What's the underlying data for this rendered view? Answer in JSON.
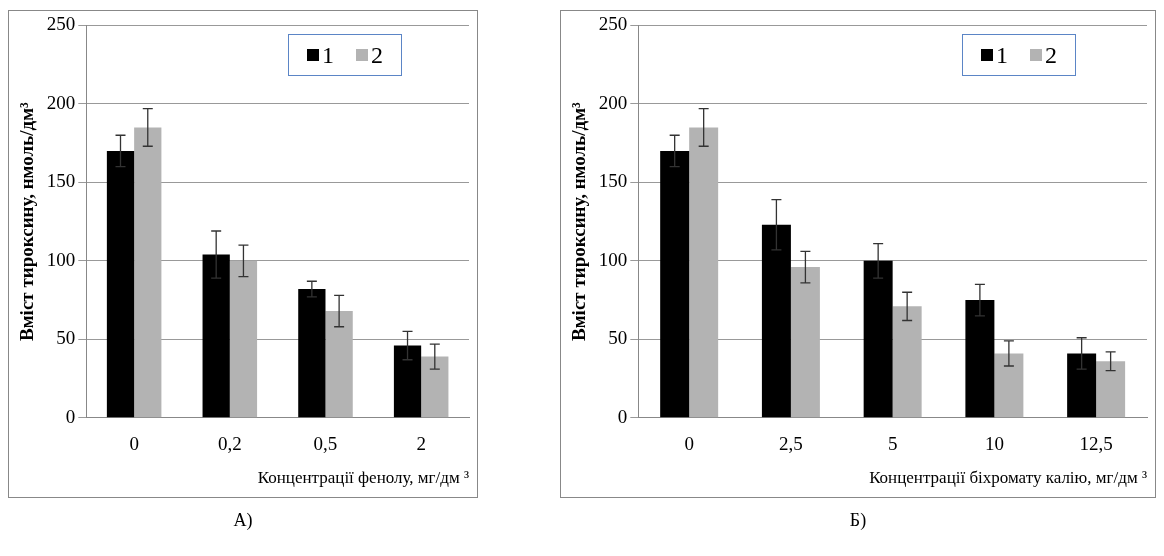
{
  "chart_data": [
    {
      "type": "bar",
      "ylabel": "Вміст тироксину, нмоль/дм³",
      "xlabel": "Концентрації фенолу, мг/дм ³",
      "categories": [
        "0",
        "0,2",
        "0,5",
        "2"
      ],
      "ylim": [
        0,
        250
      ],
      "yticks": [
        0,
        50,
        100,
        150,
        200,
        250
      ],
      "grid": "y",
      "legend": "top",
      "annotations": [
        "А)"
      ],
      "series": [
        {
          "name": "1",
          "color": "#000000",
          "values": [
            170,
            104,
            82,
            46
          ],
          "errors": [
            10,
            15,
            5,
            9
          ]
        },
        {
          "name": "2",
          "color": "#b3b3b3",
          "values": [
            185,
            100,
            68,
            39
          ],
          "errors": [
            12,
            10,
            10,
            8
          ]
        }
      ]
    },
    {
      "type": "bar",
      "ylabel": "Вміст тироксину, нмоль/дм³",
      "xlabel": "Концентрації біхромату калію, мг/дм ³",
      "categories": [
        "0",
        "2,5",
        "5",
        "10",
        "12,5"
      ],
      "ylim": [
        0,
        250
      ],
      "yticks": [
        0,
        50,
        100,
        150,
        200,
        250
      ],
      "grid": "y",
      "legend": "top right",
      "annotations": [
        "Б)"
      ],
      "series": [
        {
          "name": "1",
          "color": "#000000",
          "values": [
            170,
            123,
            100,
            75,
            41
          ],
          "errors": [
            10,
            16,
            11,
            10,
            10
          ]
        },
        {
          "name": "2",
          "color": "#b3b3b3",
          "values": [
            185,
            96,
            71,
            41,
            36
          ],
          "errors": [
            12,
            10,
            9,
            8,
            6
          ]
        }
      ]
    }
  ]
}
